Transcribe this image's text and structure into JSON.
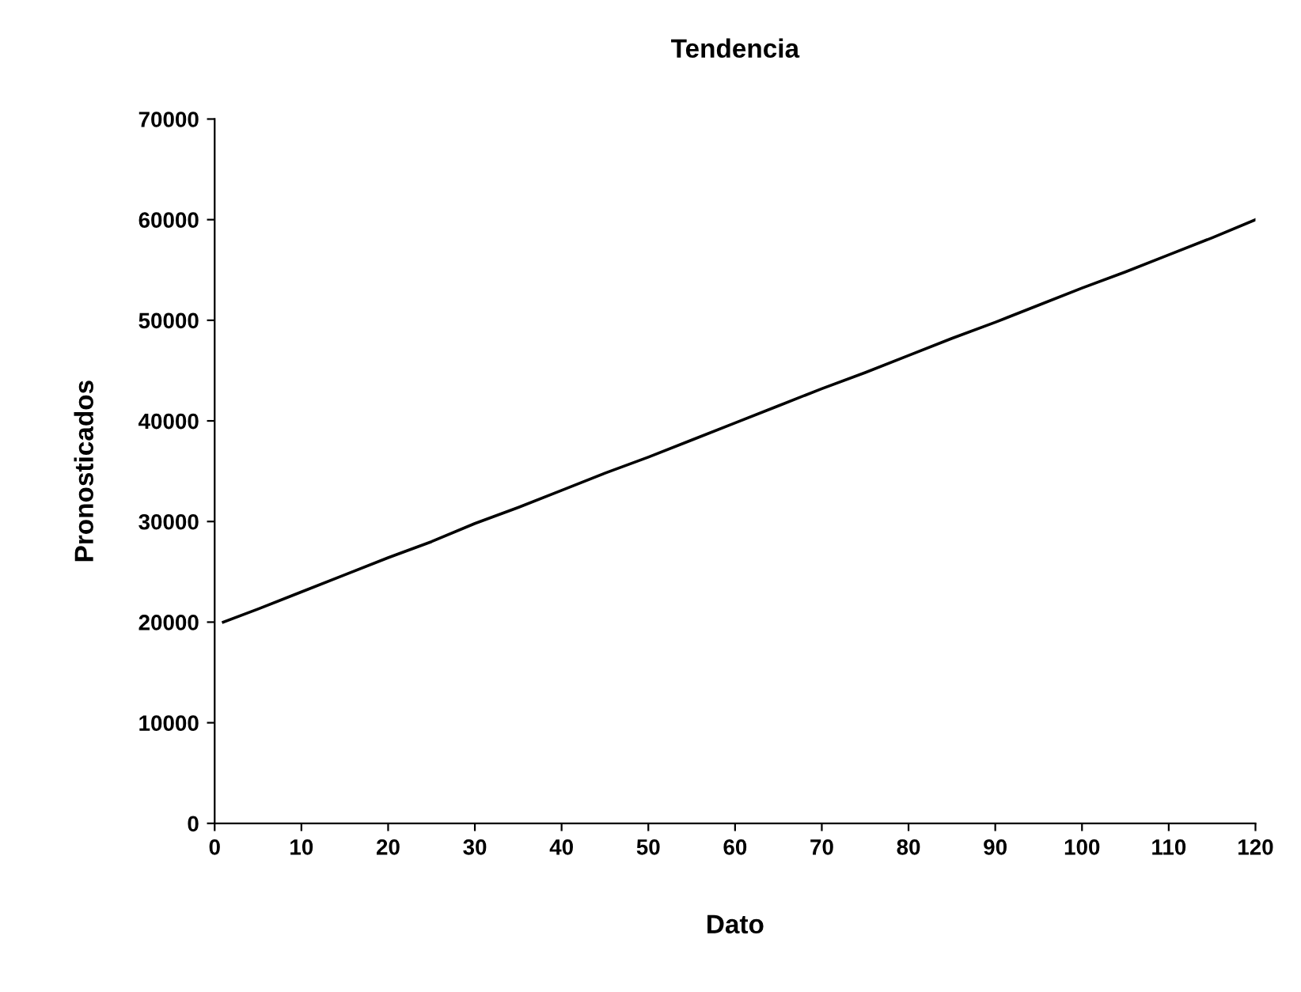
{
  "chart_data": {
    "type": "line",
    "title": "Tendencia",
    "xlabel": "Dato",
    "ylabel": "Pronosticados",
    "x": [
      1,
      5,
      10,
      15,
      20,
      25,
      30,
      35,
      40,
      45,
      50,
      55,
      60,
      65,
      70,
      75,
      80,
      85,
      90,
      95,
      100,
      105,
      110,
      115,
      120
    ],
    "series": [
      {
        "color": "#000000",
        "values": [
          20000,
          21300,
          23000,
          24700,
          26400,
          28000,
          29800,
          31400,
          33100,
          34800,
          36400,
          38100,
          39800,
          41500,
          43200,
          44800,
          46500,
          48200,
          49800,
          51500,
          53200,
          54800,
          56500,
          58200,
          60000
        ]
      }
    ],
    "xlim": [
      0,
      120
    ],
    "xticks": [
      0,
      10,
      20,
      30,
      40,
      50,
      60,
      70,
      80,
      90,
      100,
      110,
      120
    ],
    "ylim": [
      0,
      70000
    ],
    "yticks": [
      0,
      10000,
      20000,
      30000,
      40000,
      50000,
      60000,
      70000
    ],
    "grid": false,
    "legend": false,
    "marker": "none",
    "line_style": "solid"
  }
}
